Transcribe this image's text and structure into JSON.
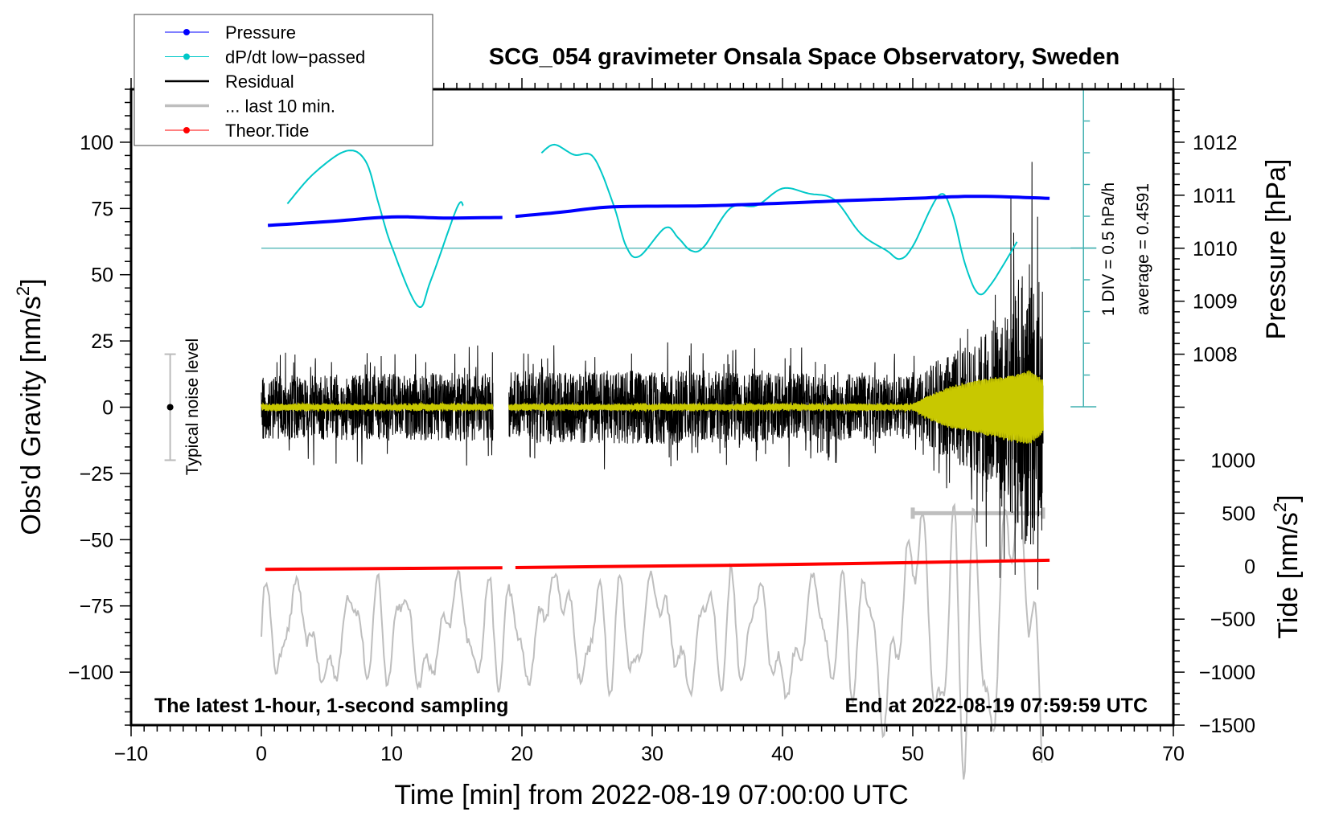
{
  "chart_data": {
    "type": "line",
    "title": "SCG_054 gravimeter Onsala Space Observatory, Sweden",
    "xlabel": "Time [min] from 2022-08-19 07:00:00 UTC",
    "ylabel_left": "Obs'd Gravity [nm/s",
    "ylabel_left_sup": "2",
    "ylabel_left_end": "]",
    "ylabel_right_pressure": "Pressure [hPa]",
    "ylabel_right_tide": "Tide [nm/s",
    "ylabel_right_tide_sup": "2",
    "ylabel_right_tide_end": "]",
    "xlim": [
      -10,
      70
    ],
    "ylim": [
      -120,
      120
    ],
    "pressure_lim": [
      1001,
      1013
    ],
    "tide_lim": [
      -1500,
      4500
    ],
    "x_ticks": [
      "-10",
      "0",
      "10",
      "20",
      "30",
      "40",
      "50",
      "60",
      "70"
    ],
    "y_ticks": [
      "100",
      "75",
      "50",
      "25",
      "0",
      "-25",
      "-50",
      "-75",
      "-100"
    ],
    "pressure_ticks": [
      "1012",
      "1011",
      "1010",
      "1009",
      "1008"
    ],
    "tide_ticks": [
      "1000",
      "500",
      "0",
      "-500",
      "-1000",
      "-1500"
    ],
    "note_left": "The latest 1-hour, 1-second sampling",
    "note_right": "End at 2022-08-19 07:59:59 UTC",
    "dpdt_scale_label": "1 DIV = 0.5 hPa/h",
    "dpdt_average_label": "average = 0.4591",
    "dpdt_average": 0.4591,
    "dpdt_div": 0.5,
    "dpdt_axis_x": 63.1,
    "noise_label": "Typical noise level",
    "noise_level": {
      "x": -7,
      "range": [
        -20,
        20
      ]
    },
    "legend": {
      "position": "top-left",
      "entries": [
        {
          "label": "Pressure",
          "color": "#0000ff",
          "marker": "dot"
        },
        {
          "label": "dP/dt low−passed",
          "color": "#00c8c8",
          "marker": "dot"
        },
        {
          "label": "Residual",
          "color": "#000000",
          "marker": "line"
        },
        {
          "label": "... last 10 min.",
          "color": "#bebebe",
          "marker": "line"
        },
        {
          "label": "Theor.Tide",
          "color": "#ff0000",
          "marker": "dot"
        }
      ]
    },
    "series": [
      {
        "name": "Pressure",
        "unit": "hPa",
        "color": "#0000ff",
        "segments": [
          [
            [
              0.5,
              1010.43
            ],
            [
              5,
              1010.5
            ],
            [
              10,
              1010.59
            ],
            [
              14,
              1010.57
            ],
            [
              18.5,
              1010.58
            ]
          ],
          [
            [
              19.5,
              1010.6
            ],
            [
              23,
              1010.68
            ],
            [
              27,
              1010.78
            ],
            [
              34,
              1010.8
            ],
            [
              40,
              1010.85
            ],
            [
              45,
              1010.9
            ],
            [
              50,
              1010.94
            ],
            [
              55,
              1010.98
            ],
            [
              60.5,
              1010.94
            ]
          ]
        ]
      },
      {
        "name": "dP/dt low-passed",
        "unit": "hPa/h",
        "color": "#00c8c8",
        "segments": [
          [
            [
              2,
              1.16
            ],
            [
              4,
              1.63
            ],
            [
              6.5,
              1.99
            ],
            [
              8,
              1.83
            ],
            [
              9,
              1.16
            ],
            [
              10,
              0.49
            ],
            [
              12,
              -0.45
            ],
            [
              13,
              -0.05
            ],
            [
              15,
              1.09
            ],
            [
              15.5,
              1.13
            ]
          ],
          [
            [
              21.5,
              1.96
            ],
            [
              22.5,
              2.09
            ],
            [
              24,
              1.93
            ],
            [
              25.5,
              1.89
            ],
            [
              27,
              1.16
            ],
            [
              28,
              0.49
            ],
            [
              29,
              0.33
            ],
            [
              31,
              0.78
            ],
            [
              32,
              0.62
            ],
            [
              33,
              0.42
            ],
            [
              34,
              0.49
            ],
            [
              36,
              1.09
            ],
            [
              38,
              1.13
            ],
            [
              40,
              1.4
            ],
            [
              42,
              1.32
            ],
            [
              44,
              1.22
            ],
            [
              46,
              0.69
            ],
            [
              48,
              0.42
            ],
            [
              49,
              0.29
            ],
            [
              50,
              0.49
            ],
            [
              52,
              1.29
            ],
            [
              53,
              1.03
            ],
            [
              54,
              0.22
            ],
            [
              55,
              -0.25
            ],
            [
              56,
              -0.11
            ],
            [
              58,
              0.56
            ]
          ]
        ]
      },
      {
        "name": "Residual",
        "unit": "nm/s2",
        "color": "#000000",
        "segments": [
          [
            0,
            17.8
          ],
          [
            19.0,
            60
          ]
        ],
        "envelope": [
          [
            0,
            12
          ],
          [
            30,
            14
          ],
          [
            50,
            12
          ],
          [
            52,
            18
          ],
          [
            55,
            25
          ],
          [
            57,
            40
          ],
          [
            59,
            55
          ],
          [
            60,
            45
          ]
        ]
      },
      {
        "name": "Residual low-passed",
        "color": "#c8c800",
        "envelope": [
          [
            0,
            1
          ],
          [
            50,
            1
          ],
          [
            51,
            4
          ],
          [
            53,
            8
          ],
          [
            56,
            11
          ],
          [
            59,
            14
          ],
          [
            60,
            10
          ]
        ]
      },
      {
        "name": "... last 10 min.",
        "color": "#bebebe",
        "source_range": [
          50,
          60
        ],
        "center": -85,
        "envelope": [
          [
            0,
            15
          ],
          [
            45,
            18
          ],
          [
            50,
            35
          ],
          [
            60,
            45
          ]
        ],
        "bar": {
          "range": [
            50,
            60
          ],
          "y": -40
        }
      },
      {
        "name": "Theor.Tide",
        "unit": "nm/s2",
        "color": "#ff0000",
        "segments": [
          [
            [
              0.3,
              -30
            ],
            [
              18.5,
              -15
            ]
          ],
          [
            [
              19.5,
              -13
            ],
            [
              40,
              15
            ],
            [
              60.5,
              56
            ]
          ]
        ]
      }
    ]
  }
}
